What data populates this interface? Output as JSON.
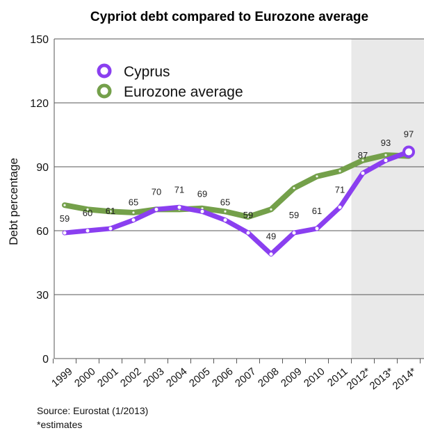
{
  "chart_data": {
    "type": "line",
    "title": "Cypriot debt compared to Eurozone average",
    "xlabel": "",
    "ylabel": "Debt percentage",
    "ylim": [
      0,
      150
    ],
    "yticks": [
      0,
      30,
      60,
      90,
      120,
      150
    ],
    "categories": [
      "1999",
      "2000",
      "2001",
      "2002",
      "2003",
      "2004",
      "2005",
      "2006",
      "2007",
      "2008",
      "2009",
      "2010",
      "2011",
      "2012*",
      "2013*",
      "2014*"
    ],
    "shaded_from_category": "2012*",
    "grid": true,
    "legend_position": "top-left",
    "series": [
      {
        "name": "Cyprus",
        "color": "#8a3ff0",
        "values": [
          59,
          60,
          61,
          65,
          70,
          71,
          69,
          65,
          59,
          49,
          59,
          61,
          71,
          87,
          93,
          97
        ],
        "labels": [
          "59",
          "60",
          "61",
          "65",
          "70",
          "71",
          "69",
          "65",
          "59",
          "49",
          "59",
          "61",
          "71",
          "87",
          "93",
          "97"
        ]
      },
      {
        "name": "Eurozone average",
        "color": "#74a04a",
        "values": [
          72,
          70,
          69,
          68.5,
          70,
          70,
          70.5,
          69,
          66.5,
          70,
          80,
          85.5,
          88,
          93,
          95.5,
          95
        ]
      }
    ]
  },
  "footer": {
    "source": "Source: Eurostat (1/2013)",
    "note": "*estimates"
  }
}
